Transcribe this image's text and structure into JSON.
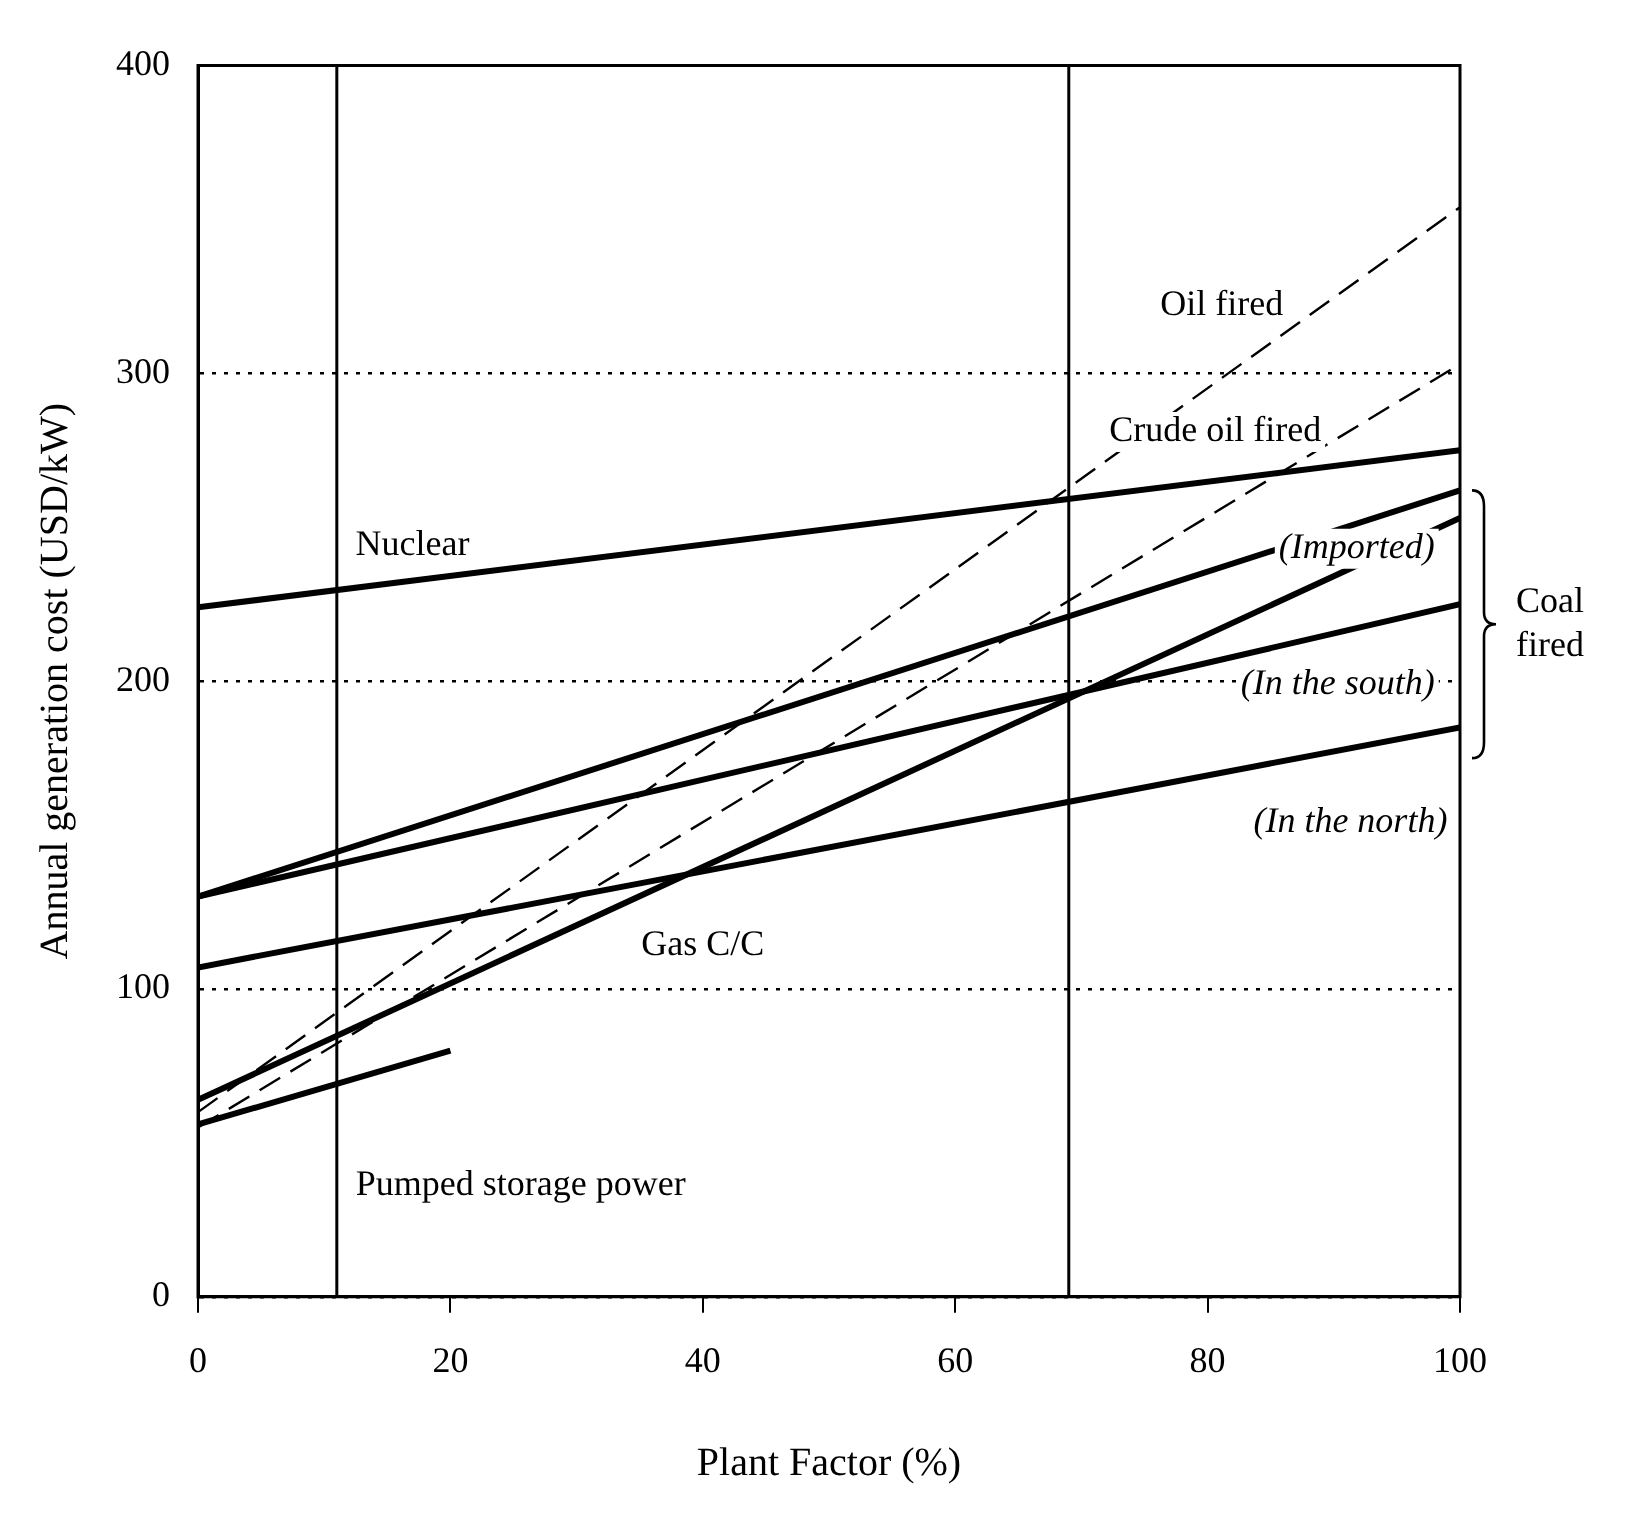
{
  "chart_data": {
    "type": "line",
    "xlabel": "Plant Factor (%)",
    "ylabel": "Annual generation cost (USD/kW)",
    "xlim": [
      0,
      100
    ],
    "ylim": [
      0,
      400
    ],
    "xticks": [
      0,
      20,
      40,
      60,
      80,
      100
    ],
    "yticks": [
      0,
      100,
      200,
      300,
      400
    ],
    "grid": "y",
    "legend": false,
    "marker": "none",
    "line_style": "solid",
    "series": [
      {
        "name": "Nuclear",
        "color": "#000000",
        "x": [
          0,
          100
        ],
        "values": [
          224,
          275
        ]
      },
      {
        "name": "(Imported)",
        "color": "#000000",
        "x": [
          0,
          100
        ],
        "values": [
          130,
          262
        ]
      },
      {
        "name": "(In the south)",
        "color": "#000000",
        "x": [
          0,
          100
        ],
        "values": [
          130,
          225
        ]
      },
      {
        "name": "(In the north)",
        "color": "#000000",
        "x": [
          0,
          100
        ],
        "values": [
          107,
          185
        ]
      },
      {
        "name": "Gas C/C",
        "color": "#000000",
        "x": [
          0,
          100
        ],
        "values": [
          64,
          253
        ]
      },
      {
        "name": "Pumped storage power",
        "color": "#000000",
        "x": [
          0,
          20
        ],
        "values": [
          56,
          80
        ]
      },
      {
        "name": "Oil fired",
        "color": "#000000",
        "x": [
          0,
          100
        ],
        "values": [
          60,
          354
        ],
        "line_style": "dashed"
      },
      {
        "name": "Crude oil fired",
        "color": "#000000",
        "x": [
          0,
          100
        ],
        "values": [
          55,
          303
        ],
        "line_style": "dashed"
      }
    ],
    "ref_lines": [
      {
        "axis": "x",
        "value": 11,
        "color": "#000000"
      },
      {
        "axis": "x",
        "value": 69,
        "color": "#000000"
      }
    ],
    "annotations": [
      "Coal fired"
    ]
  }
}
